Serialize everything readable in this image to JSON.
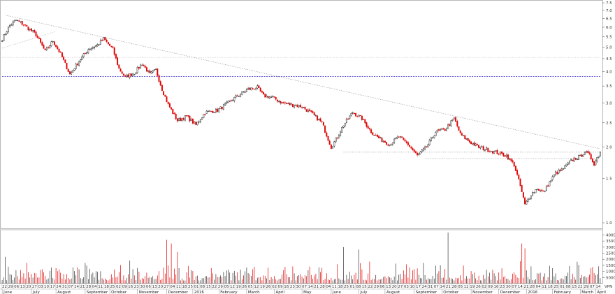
{
  "chart_data": [
    {
      "type": "candlestick",
      "title": "",
      "ylabel": "",
      "scale": "log",
      "ylim": [
        0.95,
        7.6
      ],
      "ytick_labels": [
        "7.5",
        "7.0",
        "6.5",
        "6.0",
        "5.5",
        "5.0",
        "4.5",
        "4.0",
        "3.5",
        "3.0",
        "2.5",
        "2.0",
        "1.5",
        "1.0"
      ],
      "ytick_values": [
        7.5,
        7.0,
        6.5,
        6.0,
        5.5,
        5.0,
        4.5,
        4.0,
        3.5,
        3.0,
        2.5,
        2.0,
        1.5,
        1.0
      ],
      "anchors": [
        {
          "i": 0,
          "v": 5.4
        },
        {
          "i": 5,
          "v": 6.1
        },
        {
          "i": 9,
          "v": 6.4
        },
        {
          "i": 14,
          "v": 6.15
        },
        {
          "i": 22,
          "v": 5.6
        },
        {
          "i": 28,
          "v": 4.8
        },
        {
          "i": 33,
          "v": 5.3
        },
        {
          "i": 38,
          "v": 4.7
        },
        {
          "i": 44,
          "v": 3.9
        },
        {
          "i": 50,
          "v": 4.4
        },
        {
          "i": 56,
          "v": 4.9
        },
        {
          "i": 62,
          "v": 5.1
        },
        {
          "i": 66,
          "v": 5.4
        },
        {
          "i": 72,
          "v": 4.9
        },
        {
          "i": 76,
          "v": 4.1
        },
        {
          "i": 80,
          "v": 3.8
        },
        {
          "i": 86,
          "v": 3.95
        },
        {
          "i": 91,
          "v": 4.3
        },
        {
          "i": 96,
          "v": 3.9
        },
        {
          "i": 100,
          "v": 4.05
        },
        {
          "i": 104,
          "v": 3.4
        },
        {
          "i": 108,
          "v": 2.95
        },
        {
          "i": 114,
          "v": 2.55
        },
        {
          "i": 120,
          "v": 2.65
        },
        {
          "i": 126,
          "v": 2.45
        },
        {
          "i": 132,
          "v": 2.75
        },
        {
          "i": 140,
          "v": 2.8
        },
        {
          "i": 147,
          "v": 3.0
        },
        {
          "i": 153,
          "v": 3.2
        },
        {
          "i": 160,
          "v": 3.4
        },
        {
          "i": 166,
          "v": 3.45
        },
        {
          "i": 170,
          "v": 3.2
        },
        {
          "i": 176,
          "v": 3.15
        },
        {
          "i": 182,
          "v": 3.0
        },
        {
          "i": 188,
          "v": 2.95
        },
        {
          "i": 195,
          "v": 2.9
        },
        {
          "i": 202,
          "v": 2.7
        },
        {
          "i": 208,
          "v": 2.5
        },
        {
          "i": 214,
          "v": 2.0
        },
        {
          "i": 218,
          "v": 2.2
        },
        {
          "i": 222,
          "v": 2.45
        },
        {
          "i": 228,
          "v": 2.75
        },
        {
          "i": 234,
          "v": 2.6
        },
        {
          "i": 240,
          "v": 2.3
        },
        {
          "i": 246,
          "v": 2.15
        },
        {
          "i": 252,
          "v": 2.05
        },
        {
          "i": 258,
          "v": 2.2
        },
        {
          "i": 264,
          "v": 2.05
        },
        {
          "i": 270,
          "v": 1.85
        },
        {
          "i": 276,
          "v": 2.0
        },
        {
          "i": 282,
          "v": 2.3
        },
        {
          "i": 288,
          "v": 2.35
        },
        {
          "i": 294,
          "v": 2.6
        },
        {
          "i": 298,
          "v": 2.25
        },
        {
          "i": 304,
          "v": 2.1
        },
        {
          "i": 310,
          "v": 2.0
        },
        {
          "i": 316,
          "v": 1.95
        },
        {
          "i": 322,
          "v": 1.9
        },
        {
          "i": 328,
          "v": 1.85
        },
        {
          "i": 333,
          "v": 1.7
        },
        {
          "i": 337,
          "v": 1.4
        },
        {
          "i": 340,
          "v": 1.18
        },
        {
          "i": 344,
          "v": 1.3
        },
        {
          "i": 348,
          "v": 1.37
        },
        {
          "i": 352,
          "v": 1.32
        },
        {
          "i": 356,
          "v": 1.45
        },
        {
          "i": 360,
          "v": 1.58
        },
        {
          "i": 364,
          "v": 1.62
        },
        {
          "i": 368,
          "v": 1.72
        },
        {
          "i": 372,
          "v": 1.8
        },
        {
          "i": 376,
          "v": 1.83
        },
        {
          "i": 379,
          "v": 1.92
        },
        {
          "i": 382,
          "v": 1.85
        },
        {
          "i": 385,
          "v": 1.72
        },
        {
          "i": 389,
          "v": 1.92
        }
      ],
      "n_candles": 390,
      "colors": {
        "up": "#ffffff",
        "up_border": "#000000",
        "down": "#e00000",
        "down_border": "#e00000",
        "wick": "#000000"
      },
      "trendlines": [
        {
          "from": {
            "i": 2,
            "v": 6.7
          },
          "to": {
            "i": 389,
            "v": 1.97
          },
          "style": "dotted",
          "color": "#888888"
        },
        {
          "from": {
            "i": 0,
            "v": 4.55
          },
          "to": {
            "i": 389,
            "v": 4.55
          },
          "style": "dotted",
          "color": "#bbbbbb"
        },
        {
          "from": {
            "i": 0,
            "v": 3.82
          },
          "to": {
            "i": 389,
            "v": 3.82
          },
          "style": "dashed",
          "color": "#4b3fd0"
        },
        {
          "from": {
            "i": 222,
            "v": 1.91
          },
          "to": {
            "i": 389,
            "v": 1.91
          },
          "style": "dotted",
          "color": "#999999"
        },
        {
          "from": {
            "i": 275,
            "v": 1.8
          },
          "to": {
            "i": 389,
            "v": 1.8
          },
          "style": "dotted",
          "color": "#999999"
        },
        {
          "from": {
            "i": 0,
            "v": 4.95
          },
          "to": {
            "i": 34,
            "v": 5.75
          },
          "style": "dotted",
          "color": "#aaaaaa"
        }
      ]
    },
    {
      "type": "bar",
      "title": "",
      "ylabel": "",
      "ylim": [
        0,
        42000
      ],
      "ytick_labels": [
        "40000",
        "35000",
        "30000",
        "25000",
        "20000",
        "15000",
        "10000",
        "5000"
      ],
      "ytick_values": [
        40000,
        35000,
        30000,
        25000,
        20000,
        15000,
        10000,
        5000
      ],
      "spikes": [
        {
          "i": 2,
          "v": 22000
        },
        {
          "i": 107,
          "v": 36000
        },
        {
          "i": 110,
          "v": 33000
        },
        {
          "i": 114,
          "v": 26000
        },
        {
          "i": 222,
          "v": 30000
        },
        {
          "i": 232,
          "v": 28000
        },
        {
          "i": 290,
          "v": 44000
        },
        {
          "i": 338,
          "v": 33000
        },
        {
          "i": 340,
          "v": 29000
        },
        {
          "i": 374,
          "v": 18000
        }
      ]
    }
  ],
  "x_axis": {
    "day_labels": [
      "22",
      "29",
      "06",
      "13",
      "20",
      "27",
      "03",
      "10",
      "17",
      "24",
      "31",
      "07",
      "14",
      "21",
      "28",
      "04",
      "11",
      "18",
      "25",
      "02",
      "09",
      "16",
      "23",
      "30",
      "06",
      "13",
      "20",
      "27",
      "04",
      "11",
      "18",
      "25",
      "01",
      "08",
      "15",
      "22",
      "29",
      "05",
      "12",
      "19",
      "26",
      "05",
      "12",
      "19",
      "26",
      "02",
      "09",
      "16",
      "23",
      "30",
      "07",
      "14",
      "21",
      "28",
      "04",
      "11",
      "18",
      "25",
      "01",
      "08",
      "15",
      "22",
      "29",
      "06",
      "13",
      "20",
      "27",
      "03",
      "10",
      "17",
      "24",
      "31",
      "07",
      "14",
      "21",
      "28",
      "05",
      "12",
      "19",
      "26",
      "02",
      "09",
      "16",
      "23",
      "30",
      "07",
      "14",
      "21",
      "28",
      "04",
      "11",
      "18",
      "25",
      "01",
      "08",
      "15",
      "22",
      "29",
      "07",
      "14"
    ],
    "month_labels": [
      {
        "label": "June",
        "i": 0
      },
      {
        "label": "July",
        "i": 19
      },
      {
        "label": "August",
        "i": 35
      },
      {
        "label": "September",
        "i": 54
      },
      {
        "label": "October",
        "i": 70
      },
      {
        "label": "November",
        "i": 88
      },
      {
        "label": "December",
        "i": 107
      },
      {
        "label": "2016",
        "i": 124
      },
      {
        "label": "February",
        "i": 141
      },
      {
        "label": "March",
        "i": 159
      },
      {
        "label": "April",
        "i": 177
      },
      {
        "label": "May",
        "i": 195
      },
      {
        "label": "June",
        "i": 214
      },
      {
        "label": "July",
        "i": 232
      },
      {
        "label": "August",
        "i": 249
      },
      {
        "label": "September",
        "i": 268
      },
      {
        "label": "October",
        "i": 286
      },
      {
        "label": "November",
        "i": 305
      },
      {
        "label": "December",
        "i": 323
      },
      {
        "label": "2016",
        "i": 341
      },
      {
        "label": "February",
        "i": 358
      },
      {
        "label": "March",
        "i": 376
      },
      {
        "label": "April",
        "i": 386
      }
    ],
    "corner_label": "VPN"
  }
}
